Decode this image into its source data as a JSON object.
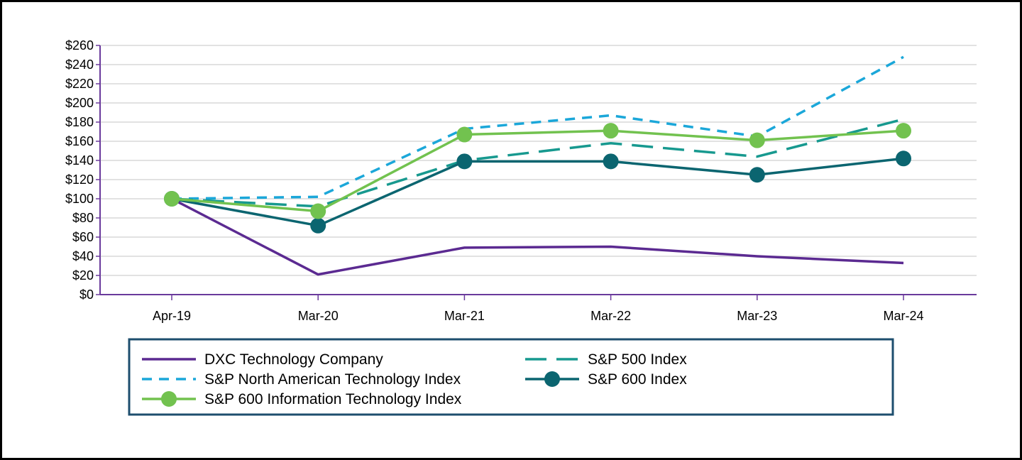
{
  "chart_data": {
    "type": "line",
    "title": "",
    "xlabel": "",
    "ylabel": "",
    "categories": [
      "Apr-19",
      "Mar-20",
      "Mar-21",
      "Mar-22",
      "Mar-23",
      "Mar-24"
    ],
    "ylim": [
      0,
      260
    ],
    "yticks": [
      "$0",
      "$20",
      "$40",
      "$60",
      "$80",
      "$100",
      "$120",
      "$140",
      "$160",
      "$180",
      "$200",
      "$220",
      "$240",
      "$260"
    ],
    "grid": "horizontal",
    "legend_position": "bottom",
    "series": [
      {
        "name": "DXC Technology Company",
        "values": [
          100,
          21,
          49,
          50,
          40,
          33
        ],
        "color": "#5b2a91",
        "style": "solid",
        "marker": "none"
      },
      {
        "name": "S&P 500 Index",
        "values": [
          100,
          92,
          140,
          158,
          144,
          183
        ],
        "color": "#17998f",
        "style": "longdash",
        "marker": "none"
      },
      {
        "name": "S&P North American Technology Index",
        "values": [
          100,
          102,
          173,
          187,
          165,
          248
        ],
        "color": "#1ba7d9",
        "style": "dash",
        "marker": "none"
      },
      {
        "name": "S&P 600 Index",
        "values": [
          100,
          72,
          139,
          139,
          125,
          142
        ],
        "color": "#0b6570",
        "style": "solid",
        "marker": "circle"
      },
      {
        "name": "S&P 600 Information Technology Index",
        "values": [
          100,
          87,
          167,
          171,
          161,
          171
        ],
        "color": "#72c24f",
        "style": "solid",
        "marker": "circle"
      }
    ]
  }
}
